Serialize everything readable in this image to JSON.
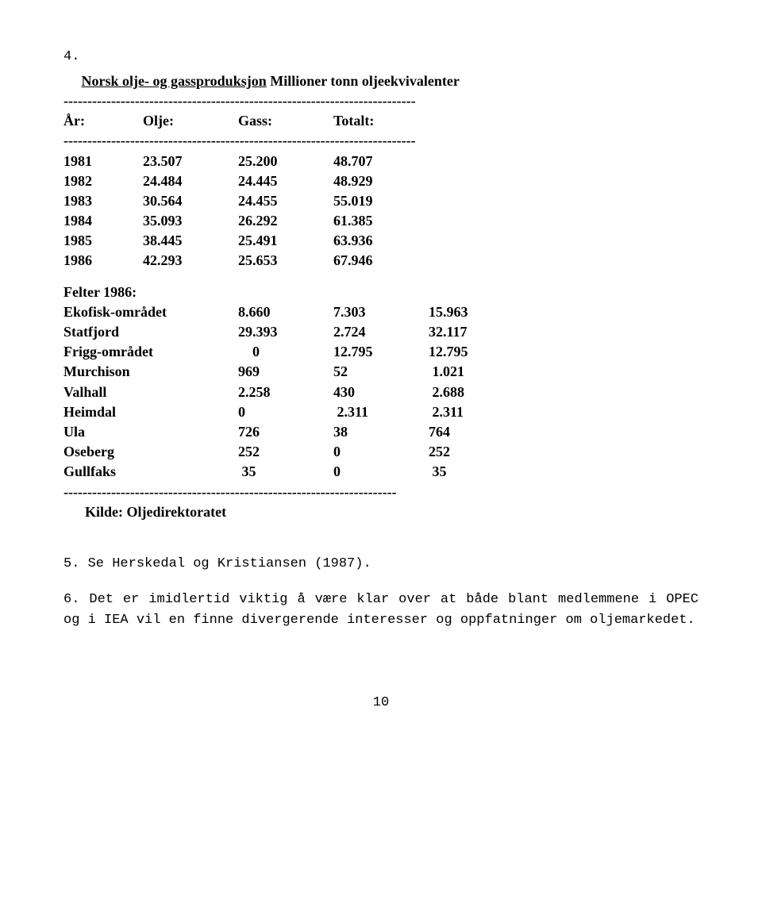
{
  "note4_prefix": "4.",
  "title_underlined": "Norsk olje- og gassproduksjon",
  "title_rest": " Millioner tonn oljeekvivalenter",
  "rule_long": "--------------------------------------------------------------------------",
  "rule_short": "----------------------------------------------------------------------",
  "header": {
    "year": "År:",
    "oil": "Olje:",
    "gas": "Gass:",
    "total": "Totalt:"
  },
  "years": [
    {
      "y": "1981",
      "a": "23.507",
      "b": "25.200",
      "c": "48.707"
    },
    {
      "y": "1982",
      "a": "24.484",
      "b": "24.445",
      "c": "48.929"
    },
    {
      "y": "1983",
      "a": "30.564",
      "b": "24.455",
      "c": "55.019"
    },
    {
      "y": "1984",
      "a": "35.093",
      "b": "26.292",
      "c": "61.385"
    },
    {
      "y": "1985",
      "a": "38.445",
      "b": "25.491",
      "c": "63.936"
    },
    {
      "y": "1986",
      "a": "42.293",
      "b": "25.653",
      "c": "67.946"
    }
  ],
  "fields_title": "Felter 1986:",
  "fields": [
    {
      "name": "Ekofisk-området",
      "a": "8.660",
      "b": "7.303",
      "c": "15.963"
    },
    {
      "name": "Statfjord",
      "a": "29.393",
      "b": "2.724",
      "c": "32.117"
    },
    {
      "name": "Frigg-området",
      "a": "    0",
      "b": "12.795",
      "c": "12.795"
    },
    {
      "name": "Murchison",
      "a": "969",
      "b": "52",
      "c": " 1.021"
    },
    {
      "name": "Valhall",
      "a": "2.258",
      "b": "430",
      "c": " 2.688"
    },
    {
      "name": "Heimdal",
      "a": "0",
      "b": " 2.311",
      "c": " 2.311"
    },
    {
      "name": "Ula",
      "a": "726",
      "b": "38",
      "c": "764"
    },
    {
      "name": "Oseberg",
      "a": "252",
      "b": "0",
      "c": "252"
    },
    {
      "name": "Gullfaks",
      "a": " 35",
      "b": "0",
      "c": " 35"
    }
  ],
  "source_indent": "      ",
  "source": "Kilde: Oljedirektoratet",
  "note5": "5. Se Herskedal og Kristiansen (1987).",
  "note6": "6. Det er imidlertid viktig å være klar over at både blant medlemmene i OPEC og i IEA vil en finne divergerende interesser og oppfatninger om oljemarkedet.",
  "pagenum": "10"
}
